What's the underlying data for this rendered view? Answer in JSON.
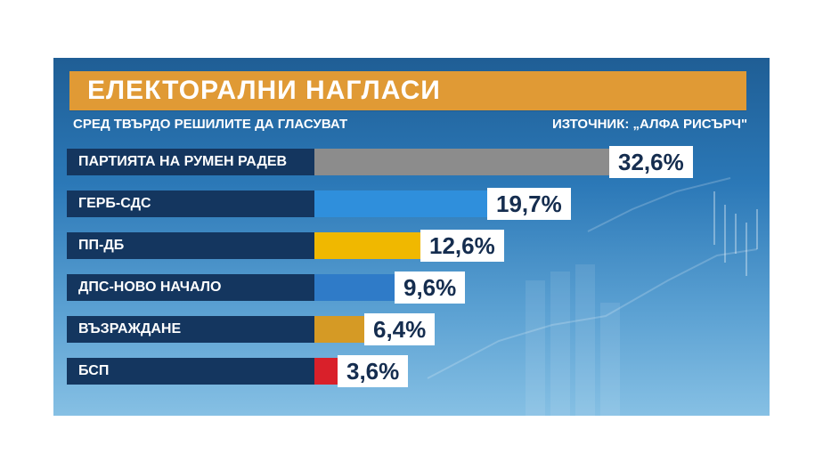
{
  "header": {
    "title": "ЕЛЕКТОРАЛНИ НАГЛАСИ",
    "subtitle": "СРЕД ТВЪРДО РЕШИЛИТЕ ДА ГЛАСУВАТ",
    "source": "ИЗТОЧНИК: „АЛФА РИСЪРЧ\""
  },
  "colors": {
    "title_bar": "#e09a35",
    "label_bg": "#14365f",
    "value_text": "#152d4f"
  },
  "chart_data": {
    "type": "bar",
    "orientation": "horizontal",
    "categories": [
      "ПАРТИЯТА НА РУМЕН РАДЕВ",
      "ГЕРБ-СДС",
      "ПП-ДБ",
      "ДПС-НОВО НАЧАЛО",
      "ВЪЗРАЖДАНЕ",
      "БСП"
    ],
    "values": [
      32.6,
      19.7,
      12.6,
      9.6,
      6.4,
      3.6
    ],
    "value_labels": [
      "32,6%",
      "19,7%",
      "12,6%",
      "9,6%",
      "6,4%",
      "3,6%"
    ],
    "bar_colors": [
      "#8c8c8c",
      "#2f8fdc",
      "#f0b800",
      "#2f7bc8",
      "#d59a25",
      "#d9202a"
    ],
    "unit": "%",
    "title": "ЕЛЕКТОРАЛНИ НАГЛАСИ",
    "subtitle": "СРЕД ТВЪРДО РЕШИЛИТЕ ДА ГЛАСУВАТ",
    "xlim": [
      0,
      32.6
    ],
    "grid": false
  }
}
